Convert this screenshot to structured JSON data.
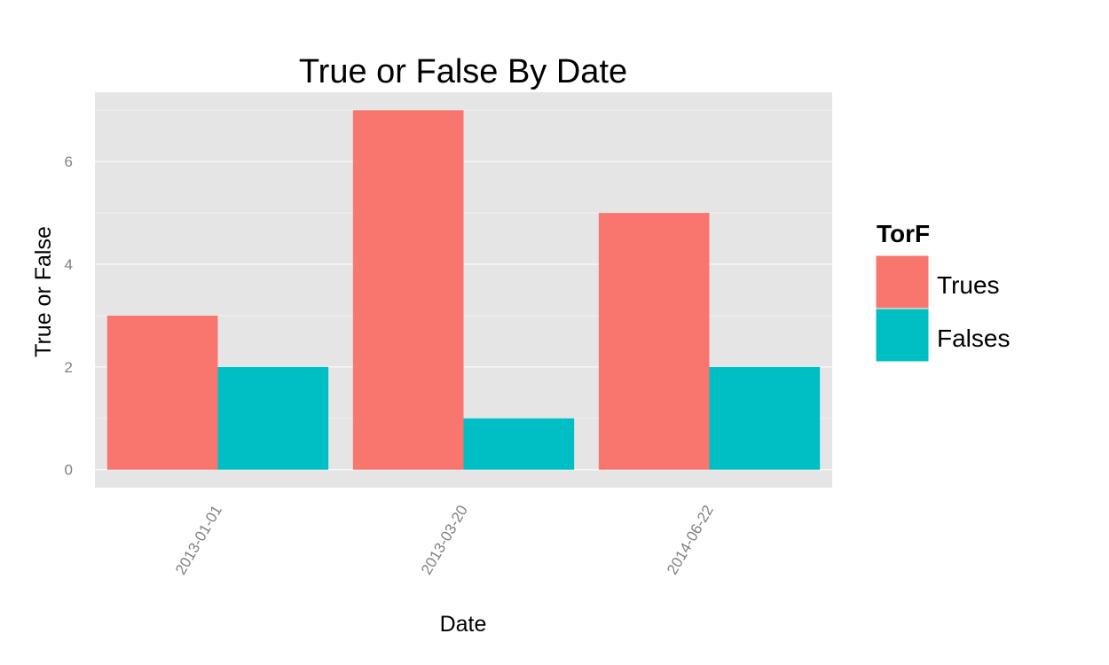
{
  "chart_data": {
    "type": "bar",
    "title": "True or False By Date",
    "xlabel": "Date",
    "ylabel": "True or False",
    "categories": [
      "2013-01-01",
      "2013-03-20",
      "2014-06-22"
    ],
    "series": [
      {
        "name": "Trues",
        "values": [
          3,
          7,
          5
        ],
        "color": "#F8766D"
      },
      {
        "name": "Falses",
        "values": [
          2,
          1,
          2
        ],
        "color": "#00BFC4"
      }
    ],
    "ylim": [
      -0.35,
      7.35
    ],
    "yticks": [
      0,
      2,
      4,
      6
    ],
    "grid": true,
    "panel_background": "#E5E5E5",
    "grid_color": "#FFFFFF",
    "legend": {
      "title": "TorF",
      "position": "right"
    }
  }
}
